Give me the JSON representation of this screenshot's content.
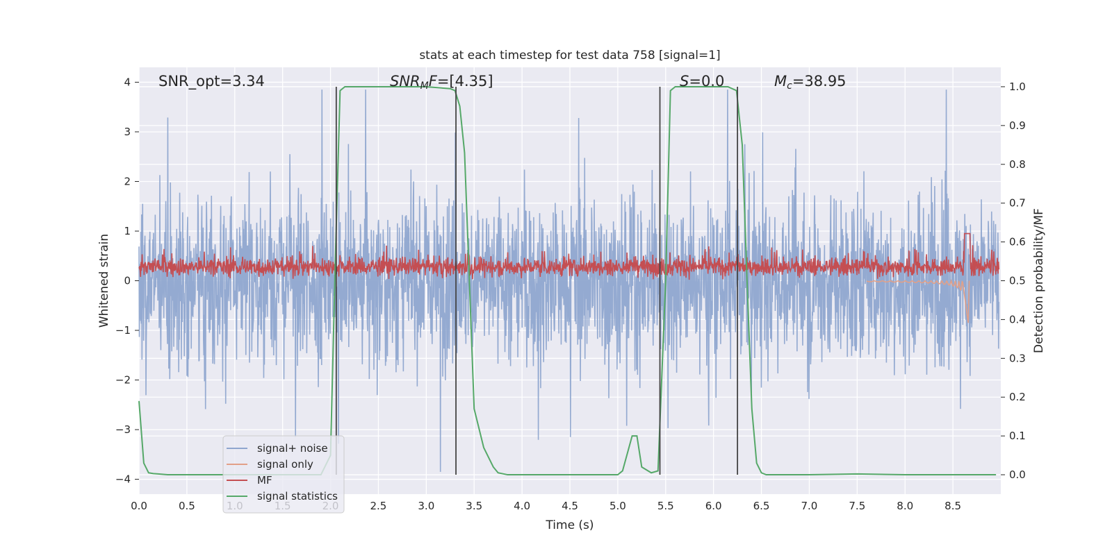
{
  "chart_data": {
    "type": "line",
    "title": "stats at each timestep for test data 758 [signal=1]",
    "xlabel": "Time (s)",
    "ylabel_left": "Whitened strain",
    "ylabel_right": "Detection probability/MF",
    "xlim": [
      0.0,
      9.0
    ],
    "ylim_left": [
      -4.3,
      4.3
    ],
    "ylim_right": [
      -0.05,
      1.05
    ],
    "xticks": [
      0.0,
      0.5,
      1.0,
      1.5,
      2.0,
      2.5,
      3.0,
      3.5,
      4.0,
      4.5,
      5.0,
      5.5,
      6.0,
      6.5,
      7.0,
      7.5,
      8.0,
      8.5
    ],
    "xtick_labels": [
      "0.0",
      "0.5",
      "1.0",
      "1.5",
      "2.0",
      "2.5",
      "3.0",
      "3.5",
      "4.0",
      "4.5",
      "5.0",
      "5.5",
      "6.0",
      "6.5",
      "7.0",
      "7.5",
      "8.0",
      "8.5"
    ],
    "yticks_left": [
      4,
      3,
      2,
      1,
      0,
      -1,
      -2,
      -3,
      -4
    ],
    "ytick_labels_left": [
      "4",
      "3",
      "2",
      "1",
      "0",
      "−1",
      "−2",
      "−3",
      "−4"
    ],
    "yticks_right": [
      1.0,
      0.9,
      0.8,
      0.7,
      0.6,
      0.5,
      0.4,
      0.3,
      0.2,
      0.1,
      0.0
    ],
    "ytick_labels_right": [
      "1.0",
      "0.9",
      "0.8",
      "0.7",
      "0.6",
      "0.5",
      "0.4",
      "0.3",
      "0.2",
      "0.1",
      "0.0"
    ],
    "annotations": {
      "snr_opt": "SNR_opt=3.34",
      "snr_mf_main": "SNR",
      "snr_mf_sub": "M",
      "snr_mf_tail": "F",
      "snr_mf_value": "=[4.35]",
      "s_main": "S",
      "s_value": "=0.0",
      "mc_main": "M",
      "mc_sub": "c",
      "mc_value": "=38.95"
    },
    "vertical_lines_x": [
      2.06,
      3.31,
      5.44,
      6.25
    ],
    "series": [
      {
        "name": "signal+ noise",
        "color": "#8fa6cf",
        "description": "noisy whitened strain, amplitude roughly within [-3.6, 3.6] across full time range"
      },
      {
        "name": "signal only",
        "color": "#e2a088",
        "description": "chirp signal, near zero until ~8.2 s, dips to about -0.85 at ~8.65 s"
      },
      {
        "name": "MF",
        "color": "#c44e52",
        "description": "matched-filter output fluctuating between about 0 and 0.6, spike to ~1.0 near 8.65 s"
      },
      {
        "name": "signal statistics",
        "color": "#55a868",
        "axis": "right",
        "x": [
          0.0,
          0.05,
          0.1,
          0.15,
          0.2,
          0.3,
          0.5,
          1.0,
          1.5,
          1.9,
          2.0,
          2.05,
          2.1,
          2.15,
          2.5,
          3.0,
          3.25,
          3.3,
          3.35,
          3.4,
          3.5,
          3.6,
          3.7,
          3.75,
          3.85,
          4.0,
          4.5,
          4.9,
          5.0,
          5.05,
          5.15,
          5.2,
          5.25,
          5.35,
          5.42,
          5.5,
          5.55,
          5.6,
          5.8,
          6.0,
          6.15,
          6.24,
          6.3,
          6.35,
          6.4,
          6.45,
          6.5,
          6.55,
          7.0,
          7.5,
          8.0,
          8.5,
          8.95
        ],
        "values": [
          0.19,
          0.03,
          0.005,
          0.003,
          0.002,
          0.0,
          0.0,
          0.0,
          0.0,
          0.0,
          0.05,
          0.55,
          0.99,
          1.0,
          1.0,
          1.0,
          0.995,
          0.99,
          0.95,
          0.83,
          0.17,
          0.07,
          0.02,
          0.005,
          0.0,
          0.0,
          0.0,
          0.0,
          0.0,
          0.01,
          0.1,
          0.1,
          0.02,
          0.005,
          0.01,
          0.5,
          0.99,
          1.0,
          1.0,
          1.0,
          1.0,
          0.99,
          0.85,
          0.5,
          0.17,
          0.03,
          0.005,
          0.0,
          0.0,
          0.002,
          0.0,
          0.0,
          0.0
        ]
      }
    ],
    "legend": {
      "placement": "lower-left",
      "entries": [
        "signal+ noise",
        "signal only",
        "MF",
        "signal statistics"
      ]
    },
    "grid": true,
    "background": "#eaeaf2"
  },
  "colors": {
    "axes_bg": "#eaeaf2",
    "grid": "#ffffff",
    "vline": "#444444"
  }
}
